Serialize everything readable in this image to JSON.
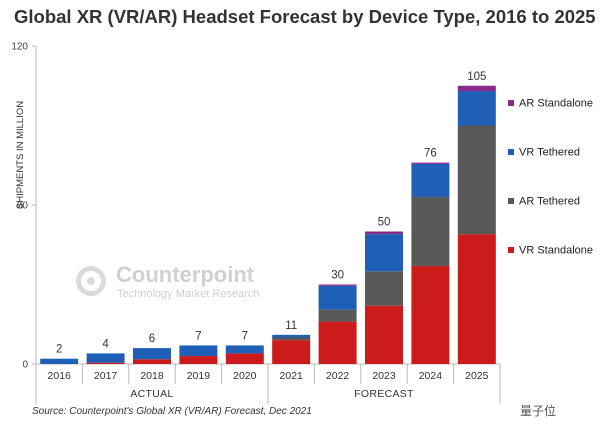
{
  "chart_data": {
    "type": "bar",
    "stacked": true,
    "title": "Global XR (VR/AR) Headset Forecast by Device Type, 2016 to 2025",
    "ylabel": "SHIPMENTS IN MILLION",
    "ylim": [
      0,
      120
    ],
    "yticks": [
      "0",
      "60",
      "120"
    ],
    "categories": [
      "2016",
      "2017",
      "2018",
      "2019",
      "2020",
      "2021",
      "2022",
      "2023",
      "2024",
      "2025"
    ],
    "totals": [
      "2",
      "4",
      "6",
      "7",
      "7",
      "11",
      "30",
      "50",
      "76",
      "105"
    ],
    "periods": [
      {
        "label": "ACTUAL",
        "from": 0,
        "to": 4
      },
      {
        "label": "FORECAST",
        "from": 5,
        "to": 9
      }
    ],
    "series": [
      {
        "name": "VR Standalone",
        "color": "#cc1b1b",
        "values": [
          0,
          0.5,
          1.8,
          3,
          4,
          9,
          16,
          22,
          37,
          49
        ]
      },
      {
        "name": "AR Tethered",
        "color": "#595959",
        "values": [
          0,
          0,
          0,
          0,
          0,
          1,
          4.5,
          13,
          26,
          41
        ]
      },
      {
        "name": "VR Tethered",
        "color": "#1f5fb5",
        "values": [
          2,
          3.5,
          4.2,
          4,
          3,
          1,
          9,
          14,
          12.5,
          13
        ]
      },
      {
        "name": "AR Standalone",
        "color": "#8b2a8b",
        "values": [
          0,
          0,
          0,
          0,
          0,
          0,
          0.5,
          1,
          0.5,
          2
        ]
      }
    ],
    "legend_position": "right",
    "grid": false,
    "source": "Source: Counterpoint's Global XR (VR/AR) Forecast, Dec 2021"
  },
  "watermark": {
    "name": "Counterpoint",
    "tagline": "Technology Market Research"
  },
  "brand": "量子位"
}
